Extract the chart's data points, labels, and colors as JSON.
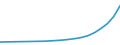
{
  "x": [
    2003,
    2004,
    2005,
    2006,
    2007,
    2008,
    2009,
    2010,
    2011,
    2012,
    2013,
    2014,
    2015,
    2016,
    2017,
    2018,
    2019,
    2020,
    2021,
    2022
  ],
  "y": [
    2.5,
    2.6,
    2.7,
    2.8,
    2.9,
    3.0,
    3.1,
    3.2,
    3.5,
    3.8,
    4.2,
    4.8,
    5.5,
    6.5,
    8.0,
    10.5,
    14.0,
    18.0,
    24.0,
    33.0
  ],
  "line_color": "#3399cc",
  "line_width": 1.2,
  "background_color": "#ffffff",
  "ylim": [
    0,
    38
  ],
  "xlim": [
    2003,
    2022
  ]
}
